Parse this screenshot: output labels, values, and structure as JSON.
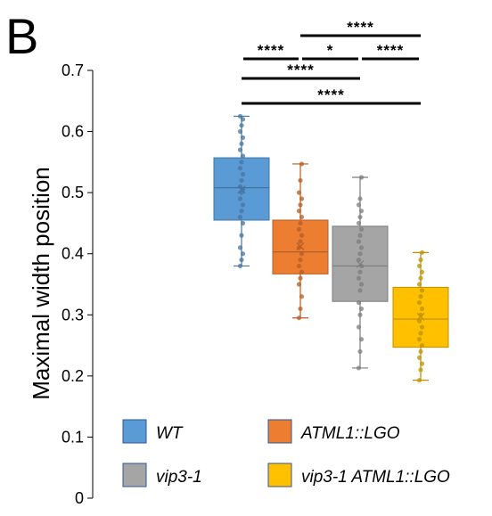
{
  "panel_label": "B",
  "chart_data": {
    "type": "box",
    "title": "",
    "ylabel": "Maximal width position",
    "ylim": [
      0,
      0.7
    ],
    "yticks": [
      "0",
      "0.1",
      "0.2",
      "0.3",
      "0.4",
      "0.5",
      "0.6",
      "0.7"
    ],
    "grid": false,
    "legend_position": "bottom",
    "series": [
      {
        "name": "WT",
        "color": "#5b9bd5",
        "min": 0.38,
        "q1": 0.455,
        "median": 0.508,
        "mean": 0.505,
        "q3": 0.557,
        "max": 0.625,
        "points": [
          0.38,
          0.39,
          0.4,
          0.41,
          0.43,
          0.45,
          0.46,
          0.47,
          0.48,
          0.49,
          0.5,
          0.505,
          0.51,
          0.52,
          0.53,
          0.54,
          0.55,
          0.56,
          0.57,
          0.58,
          0.59,
          0.6,
          0.61,
          0.62,
          0.625
        ]
      },
      {
        "name": "ATML1::LGO",
        "color": "#ed7d31",
        "min": 0.295,
        "q1": 0.367,
        "median": 0.403,
        "mean": 0.412,
        "q3": 0.455,
        "max": 0.547,
        "points": [
          0.295,
          0.31,
          0.33,
          0.35,
          0.36,
          0.37,
          0.38,
          0.39,
          0.4,
          0.41,
          0.42,
          0.43,
          0.44,
          0.45,
          0.46,
          0.47,
          0.48,
          0.49,
          0.5,
          0.52,
          0.547
        ]
      },
      {
        "name": "vip3-1",
        "color": "#a5a5a5",
        "min": 0.213,
        "q1": 0.322,
        "median": 0.38,
        "mean": 0.383,
        "q3": 0.445,
        "max": 0.525,
        "points": [
          0.213,
          0.24,
          0.26,
          0.28,
          0.3,
          0.31,
          0.32,
          0.34,
          0.35,
          0.36,
          0.37,
          0.38,
          0.39,
          0.4,
          0.41,
          0.42,
          0.43,
          0.44,
          0.45,
          0.46,
          0.47,
          0.48,
          0.49,
          0.525
        ]
      },
      {
        "name": "vip3-1 ATML1::LGO",
        "color": "#ffc000",
        "min": 0.193,
        "q1": 0.247,
        "median": 0.293,
        "mean": 0.297,
        "q3": 0.345,
        "max": 0.402,
        "points": [
          0.193,
          0.21,
          0.22,
          0.23,
          0.24,
          0.25,
          0.26,
          0.27,
          0.28,
          0.29,
          0.3,
          0.31,
          0.32,
          0.33,
          0.34,
          0.35,
          0.36,
          0.37,
          0.38,
          0.39,
          0.402
        ]
      }
    ],
    "annotations": [
      {
        "from": "WT",
        "to": "ATML1::LGO",
        "label": "****"
      },
      {
        "from": "ATML1::LGO",
        "to": "vip3-1",
        "label": "*"
      },
      {
        "from": "vip3-1",
        "to": "vip3-1 ATML1::LGO",
        "label": "****"
      },
      {
        "from": "ATML1::LGO",
        "to": "vip3-1 ATML1::LGO",
        "label": "****"
      },
      {
        "from": "WT",
        "to": "vip3-1",
        "label": "****"
      },
      {
        "from": "WT",
        "to": "vip3-1 ATML1::LGO",
        "label": "****"
      }
    ]
  }
}
